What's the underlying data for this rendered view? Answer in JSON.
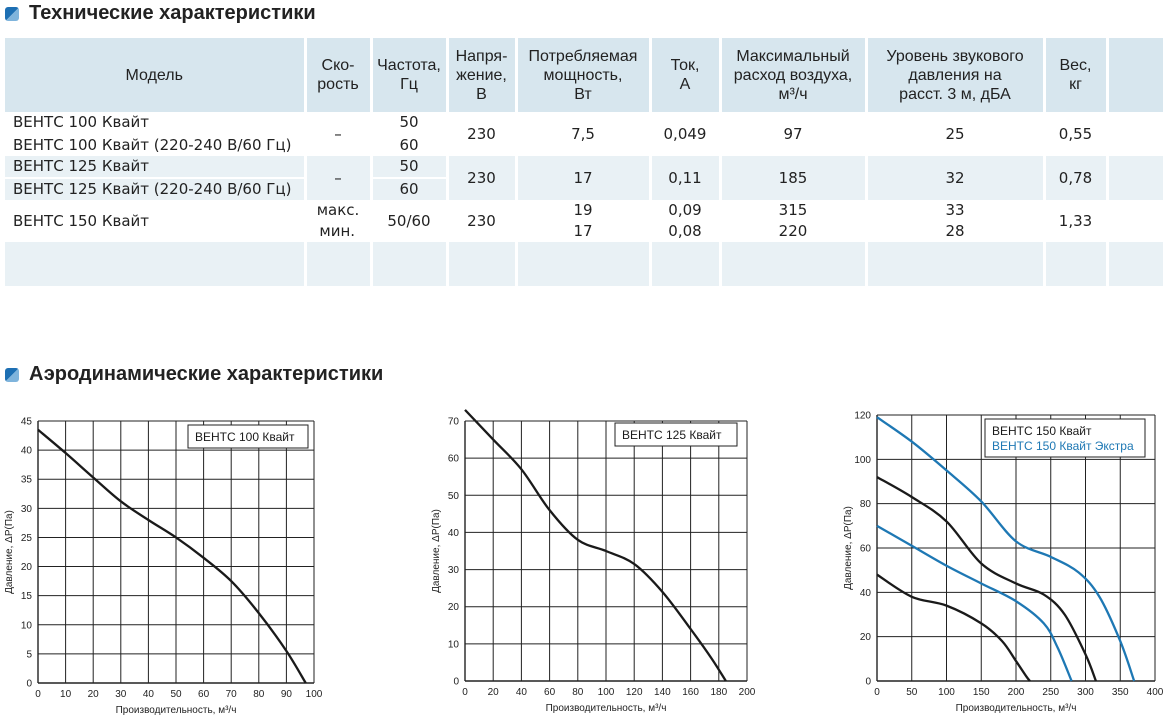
{
  "sections": {
    "tech_title": "Технические характеристики",
    "aero_title": "Аэродинамические характеристики"
  },
  "table": {
    "headers": {
      "model": "Модель",
      "speed": "Ско-\nрость",
      "freq": "Частота,\nГц",
      "voltage": "Напря-\nжение,\nВ",
      "power": "Потребляемая\nмощность,\nВт",
      "current": "Ток,\nА",
      "airflow": "Максимальный\nрасход воздуха,\nм³/ч",
      "noise": "Уровень звукового\nдавления на\nрасст. 3 м, дБА",
      "weight": "Вес,\nкг"
    },
    "rows": [
      {
        "model": "ВЕНТС 100 Квайт",
        "speed": "–",
        "freq": "50",
        "voltage": "230",
        "power": "7,5",
        "current": "0,049",
        "airflow": "97",
        "noise": "25",
        "weight": "0,55"
      },
      {
        "model": "ВЕНТС 100 Квайт (220-240 В/60 Гц)",
        "freq": "60"
      },
      {
        "model": "ВЕНТС 125 Квайт",
        "speed": "–",
        "freq": "50",
        "voltage": "230",
        "power": "17",
        "current": "0,11",
        "airflow": "185",
        "noise": "32",
        "weight": "0,78"
      },
      {
        "model": "ВЕНТС 125 Квайт (220-240 В/60 Гц)",
        "freq": "60"
      },
      {
        "model": "ВЕНТС 150 Квайт",
        "speed": "макс.",
        "freq": "50/60",
        "voltage": "230",
        "power": "19",
        "current": "0,09",
        "airflow": "315",
        "noise": "33",
        "weight": "1,33"
      },
      {
        "speed": "мин.",
        "power": "17",
        "current": "0,08",
        "airflow": "220",
        "noise": "28"
      }
    ]
  },
  "colors": {
    "black_curve": "#1a1a1a",
    "blue_curve": "#1e78b4",
    "header_bg": "#d7e6ee",
    "row_bg": "#e9f1f5"
  },
  "chart_data": [
    {
      "type": "line",
      "title": "",
      "legend": [
        "ВЕНТС 100 Квайт"
      ],
      "legend_placement": "top-right",
      "xlabel": "Производительность, м³/ч",
      "ylabel": "Давление, ΔР(Па)",
      "xlim": [
        0,
        100
      ],
      "ylim": [
        0,
        45
      ],
      "xticks": [
        0,
        10,
        20,
        30,
        40,
        50,
        60,
        70,
        80,
        90,
        100
      ],
      "yticks": [
        0,
        5,
        10,
        15,
        20,
        25,
        30,
        35,
        40,
        45
      ],
      "grid": true,
      "series": [
        {
          "name": "ВЕНТС 100 Квайт",
          "color": "#1a1a1a",
          "x": [
            0,
            10,
            20,
            30,
            40,
            50,
            60,
            70,
            80,
            90,
            97
          ],
          "y": [
            43.5,
            39.5,
            35.3,
            31.2,
            28,
            25,
            21.5,
            17.5,
            12,
            5.5,
            0
          ]
        }
      ]
    },
    {
      "type": "line",
      "title": "",
      "legend": [
        "ВЕНТС 125 Квайт"
      ],
      "legend_placement": "top-right",
      "xlabel": "Производительность, м³/ч",
      "ylabel": "Давление, ΔР(Па)",
      "xlim": [
        0,
        200
      ],
      "ylim": [
        0,
        70
      ],
      "xticks": [
        0,
        20,
        40,
        60,
        80,
        100,
        120,
        140,
        160,
        180,
        200
      ],
      "yticks": [
        0,
        10,
        20,
        30,
        40,
        50,
        60,
        70
      ],
      "grid": true,
      "series": [
        {
          "name": "ВЕНТС 125 Квайт",
          "color": "#1a1a1a",
          "x": [
            0,
            20,
            40,
            60,
            80,
            100,
            120,
            140,
            160,
            175,
            185
          ],
          "y": [
            73,
            65,
            57,
            46,
            38,
            35,
            31.5,
            24,
            14,
            6,
            0
          ]
        }
      ]
    },
    {
      "type": "line",
      "title": "",
      "legend": [
        "ВЕНТС 150 Квайт",
        "ВЕНТС 150 Квайт Экстра"
      ],
      "legend_placement": "top-right",
      "xlabel": "Производительность, м³/ч",
      "ylabel": "Давление, ΔР(Па)",
      "xlim": [
        0,
        400
      ],
      "ylim": [
        0,
        120
      ],
      "xticks": [
        0,
        50,
        100,
        150,
        200,
        250,
        300,
        350,
        400
      ],
      "yticks": [
        0,
        20,
        40,
        60,
        80,
        100,
        120
      ],
      "grid": true,
      "series": [
        {
          "name": "ВЕНТС 150 Квайт",
          "color": "#1a1a1a",
          "x": [
            0,
            50,
            100,
            150,
            200,
            240,
            270,
            300,
            315
          ],
          "y": [
            92,
            83,
            72,
            53,
            44,
            39,
            30,
            12,
            0
          ]
        },
        {
          "color": "#1a1a1a",
          "x": [
            0,
            50,
            100,
            150,
            180,
            200,
            215,
            220
          ],
          "y": [
            48,
            38,
            34,
            26,
            18,
            9,
            2,
            0
          ]
        },
        {
          "name": "ВЕНТС 150 Квайт Экстра",
          "color": "#1e78b4",
          "x": [
            0,
            50,
            100,
            150,
            200,
            250,
            290,
            320,
            350,
            370
          ],
          "y": [
            119,
            108,
            95,
            81,
            63,
            56,
            49,
            38,
            18,
            0
          ]
        },
        {
          "color": "#1e78b4",
          "x": [
            0,
            50,
            100,
            150,
            200,
            240,
            260,
            280
          ],
          "y": [
            70,
            61,
            52,
            44,
            36,
            26,
            15,
            0
          ]
        }
      ]
    }
  ]
}
